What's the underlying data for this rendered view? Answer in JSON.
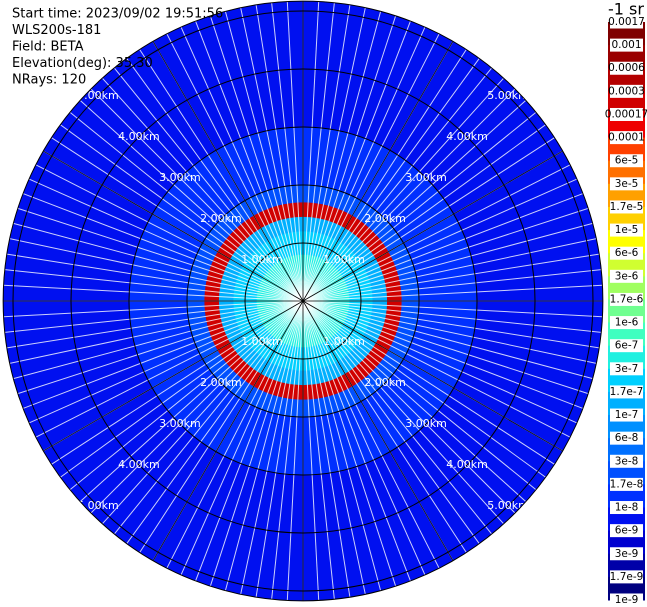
{
  "chart_data": {
    "type": "ppi",
    "info": [
      "Start time: 2023/09/02 19:51:56",
      "WLS200s-181",
      "Field: BETA",
      "Elevation(deg): 35.30",
      "NRays: 120"
    ],
    "colorbar_title": "-1 sr",
    "levels": [
      0.0017,
      0.001,
      0.0006,
      0.0003,
      0.00017,
      0.0001,
      {
        "value": 6e-05,
        "label": "6e-5"
      },
      {
        "value": 3e-05,
        "label": "3e-5"
      },
      {
        "value": 1.7e-05,
        "label": "1.7e-5"
      },
      {
        "value": 1e-05,
        "label": "1e-5"
      },
      {
        "value": 6e-06,
        "label": "6e-6"
      },
      {
        "value": 3e-06,
        "label": "3e-6"
      },
      {
        "value": 1.7e-06,
        "label": "1.7e-6"
      },
      {
        "value": 1e-06,
        "label": "1e-6"
      },
      6e-07,
      3e-07,
      1.7e-07,
      1e-07,
      6e-08,
      3e-08,
      1.7e-08,
      1e-08,
      6e-09,
      3e-09,
      1.7e-09,
      1e-09
    ],
    "level_colors": [
      "#7f0000",
      "#9a0000",
      "#b40000",
      "#d00000",
      "#ee0000",
      "#ff4000",
      "#ff7000",
      "#ffa000",
      "#ffd000",
      "#ffff00",
      "#d0ff30",
      "#a0ff60",
      "#70ff90",
      "#40ffc0",
      "#20f0e0",
      "#00d0ff",
      "#00b0ff",
      "#0090ff",
      "#0070ff",
      "#0050ff",
      "#0030ff",
      "#0010f0",
      "#0000d0",
      "#0000a8",
      "#000080"
    ],
    "range_ticks": [
      {
        "value": 1,
        "label": "1.00km"
      },
      {
        "value": 2,
        "label": "2.00km"
      },
      {
        "value": 3,
        "label": "3.00km"
      },
      {
        "value": 4,
        "label": "4.00km"
      },
      {
        "value": 5,
        "label": "5.00km"
      }
    ],
    "range_edges_km": [
      0,
      0.4,
      0.8,
      1.2,
      1.45,
      1.7,
      2.0,
      2.5,
      3,
      3.5,
      4,
      4.5,
      5.17
    ],
    "values": [
      4e-07,
      3e-07,
      2e-07,
      1.2e-07,
      0.0002,
      2e-08,
      1.2e-08,
      1e-08,
      8e-09,
      8e-09,
      7e-09,
      7e-09
    ]
  }
}
